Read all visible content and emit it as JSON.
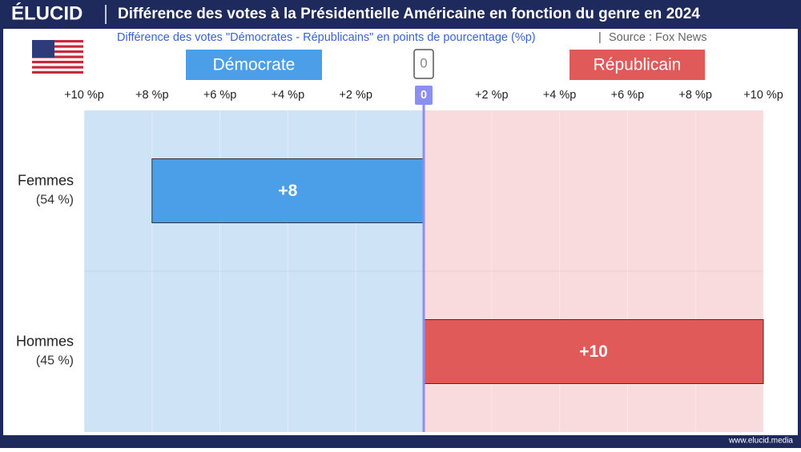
{
  "chart_data": {
    "type": "bar",
    "orientation": "horizontal",
    "brand": "ÉLUCID",
    "title": "Différence des votes à la Présidentielle Américaine en fonction du genre en 2024",
    "subtitle": "Différence des votes \"Démocrates - Républicains\" en points de pourcentage (%p)",
    "source": "Source : Fox News",
    "footer": "www.elucid.media",
    "zero_label": "0",
    "categories": [
      "Femmes",
      "Hommes"
    ],
    "category_notes": [
      "(54 %)",
      "(45 %)"
    ],
    "series": [
      {
        "name": "Démocrate",
        "color": "#4a9fe8",
        "side": "left",
        "values": [
          8,
          null
        ],
        "value_labels": [
          "+8",
          null
        ]
      },
      {
        "name": "Républicain",
        "color": "#e05a5a",
        "side": "right",
        "values": [
          null,
          10
        ],
        "value_labels": [
          null,
          "+10"
        ]
      }
    ],
    "left_axis": {
      "lim": [
        10,
        0
      ],
      "ticks": [
        {
          "value": 10,
          "label": "+10 %p"
        },
        {
          "value": 8,
          "label": "+8 %p"
        },
        {
          "value": 6,
          "label": "+6 %p"
        },
        {
          "value": 4,
          "label": "+4 %p"
        },
        {
          "value": 2,
          "label": "+2 %p"
        }
      ]
    },
    "right_axis": {
      "lim": [
        0,
        10
      ],
      "ticks": [
        0,
        {
          "value": 2,
          "label": "+2 %p"
        },
        {
          "value": 4,
          "label": "+4 %p"
        },
        {
          "value": 6,
          "label": "+6 %p"
        },
        {
          "value": 8,
          "label": "+8 %p"
        },
        {
          "value": 10,
          "label": "+10 %p"
        }
      ]
    }
  }
}
